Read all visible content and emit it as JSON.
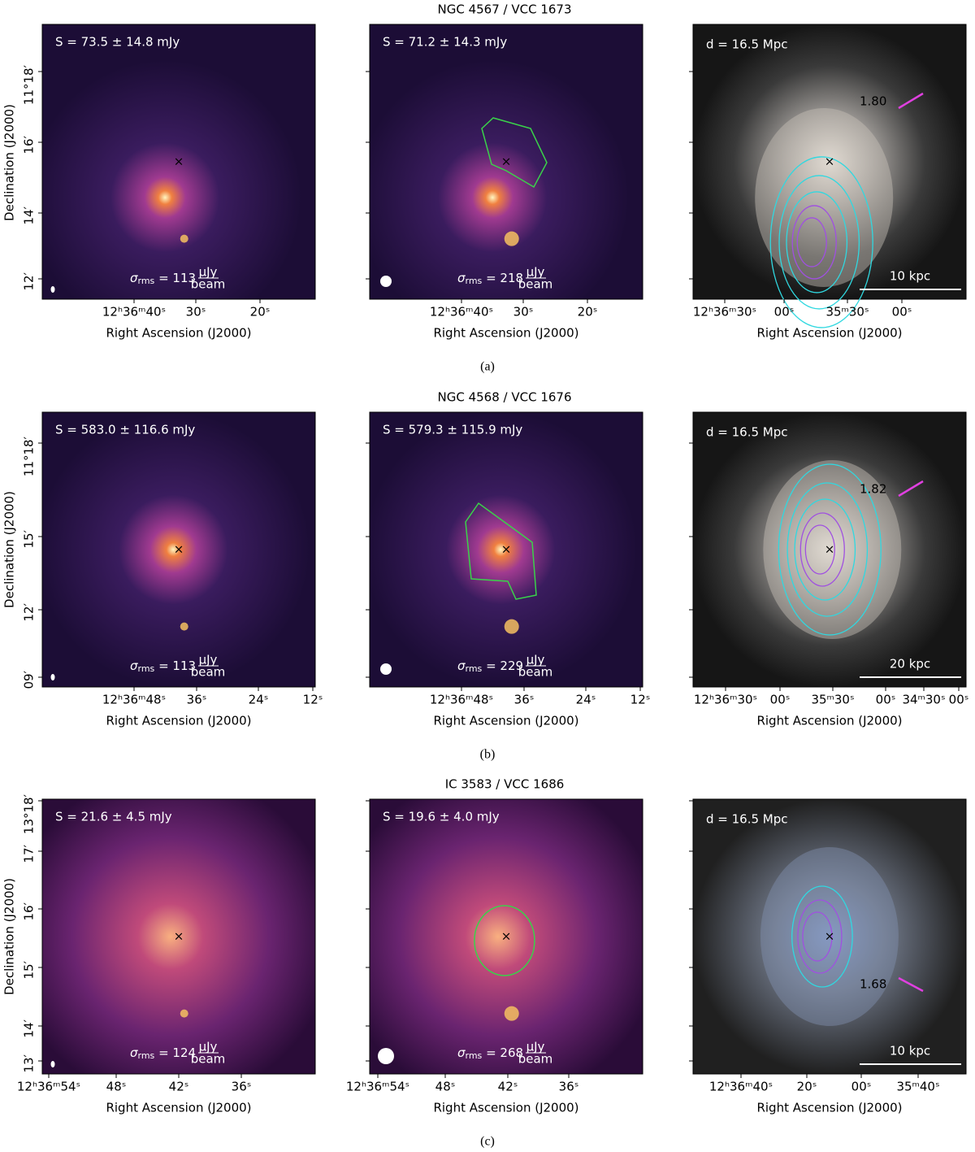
{
  "rows": [
    {
      "title": "NGC 4567 / VCC 1673",
      "caption": "(a)",
      "panels": [
        {
          "flux": "S = 73.5 ± 14.8 mJy",
          "rms": {
            "symbol": "σ",
            "sub": "rms",
            "value": " = 113",
            "unit_top": "μJy",
            "unit_bottom": "beam"
          },
          "xticks": [
            "12ʰ36ᵐ40ˢ",
            "30ˢ",
            "20ˢ"
          ],
          "xlabel": "Right Ascension (J2000)",
          "yticks": [
            "11°18′",
            "16′",
            "14′",
            "12′"
          ],
          "ylabel": "Declination (J2000)"
        },
        {
          "flux": "S = 71.2 ± 14.3 mJy",
          "rms": {
            "symbol": "σ",
            "sub": "rms",
            "value": " = 218",
            "unit_top": "μJy",
            "unit_bottom": "beam"
          },
          "xticks": [
            "12ʰ36ᵐ40ˢ",
            "30ˢ",
            "20ˢ"
          ],
          "xlabel": "Right Ascension (J2000)"
        },
        {
          "distance": "d = 16.5 Mpc",
          "spectral_index": "1.80",
          "scale": "10 kpc",
          "xticks": [
            "12ʰ36ᵐ30ˢ",
            "00ˢ",
            "35ᵐ30ˢ",
            "00ˢ"
          ],
          "xlabel": "Right Ascension (J2000)"
        }
      ]
    },
    {
      "title": "NGC 4568 / VCC 1676",
      "caption": "(b)",
      "panels": [
        {
          "flux": "S = 583.0 ± 116.6 mJy",
          "rms": {
            "symbol": "σ",
            "sub": "rms",
            "value": " = 113",
            "unit_top": "μJy",
            "unit_bottom": "beam"
          },
          "xticks": [
            "12ʰ36ᵐ48ˢ",
            "36ˢ",
            "24ˢ",
            "12ˢ"
          ],
          "xlabel": "Right Ascension (J2000)",
          "yticks": [
            "11°18′",
            "15′",
            "12′",
            "09′"
          ],
          "ylabel": "Declination (J2000)"
        },
        {
          "flux": "S = 579.3 ± 115.9 mJy",
          "rms": {
            "symbol": "σ",
            "sub": "rms",
            "value": " = 229",
            "unit_top": "μJy",
            "unit_bottom": "beam"
          },
          "xticks": [
            "12ʰ36ᵐ48ˢ",
            "36ˢ",
            "24ˢ",
            "12ˢ"
          ],
          "xlabel": "Right Ascension (J2000)"
        },
        {
          "distance": "d = 16.5 Mpc",
          "spectral_index": "1.82",
          "scale": "20 kpc",
          "xticks": [
            "12ʰ36ᵐ30ˢ",
            "00ˢ",
            "35ᵐ30ˢ",
            "00ˢ",
            "34ᵐ30ˢ",
            "00ˢ"
          ],
          "xlabel": "Right Ascension (J2000)"
        }
      ]
    },
    {
      "title": "IC 3583 / VCC 1686",
      "caption": "(c)",
      "panels": [
        {
          "flux": "S = 21.6 ± 4.5 mJy",
          "rms": {
            "symbol": "σ",
            "sub": "rms",
            "value": " = 124",
            "unit_top": "μJy",
            "unit_bottom": "beam"
          },
          "xticks": [
            "12ʰ36ᵐ54ˢ",
            "48ˢ",
            "42ˢ",
            "36ˢ"
          ],
          "xlabel": "Right Ascension (J2000)",
          "yticks": [
            "13°18′",
            "17′",
            "16′",
            "15′",
            "14′",
            "13′"
          ],
          "ylabel": "Declination (J2000)"
        },
        {
          "flux": "S = 19.6 ± 4.0 mJy",
          "rms": {
            "symbol": "σ",
            "sub": "rms",
            "value": " = 268",
            "unit_top": "μJy",
            "unit_bottom": "beam"
          },
          "xticks": [
            "12ʰ36ᵐ54ˢ",
            "48ˢ",
            "42ˢ",
            "36ˢ"
          ],
          "xlabel": "Right Ascension (J2000)"
        },
        {
          "distance": "d = 16.5 Mpc",
          "spectral_index": "1.68",
          "scale": "10 kpc",
          "xticks": [
            "12ʰ36ᵐ40ˢ",
            "20ˢ",
            "00ˢ",
            "35ᵐ40ˢ"
          ],
          "xlabel": "Right Ascension (J2000)"
        }
      ]
    }
  ]
}
